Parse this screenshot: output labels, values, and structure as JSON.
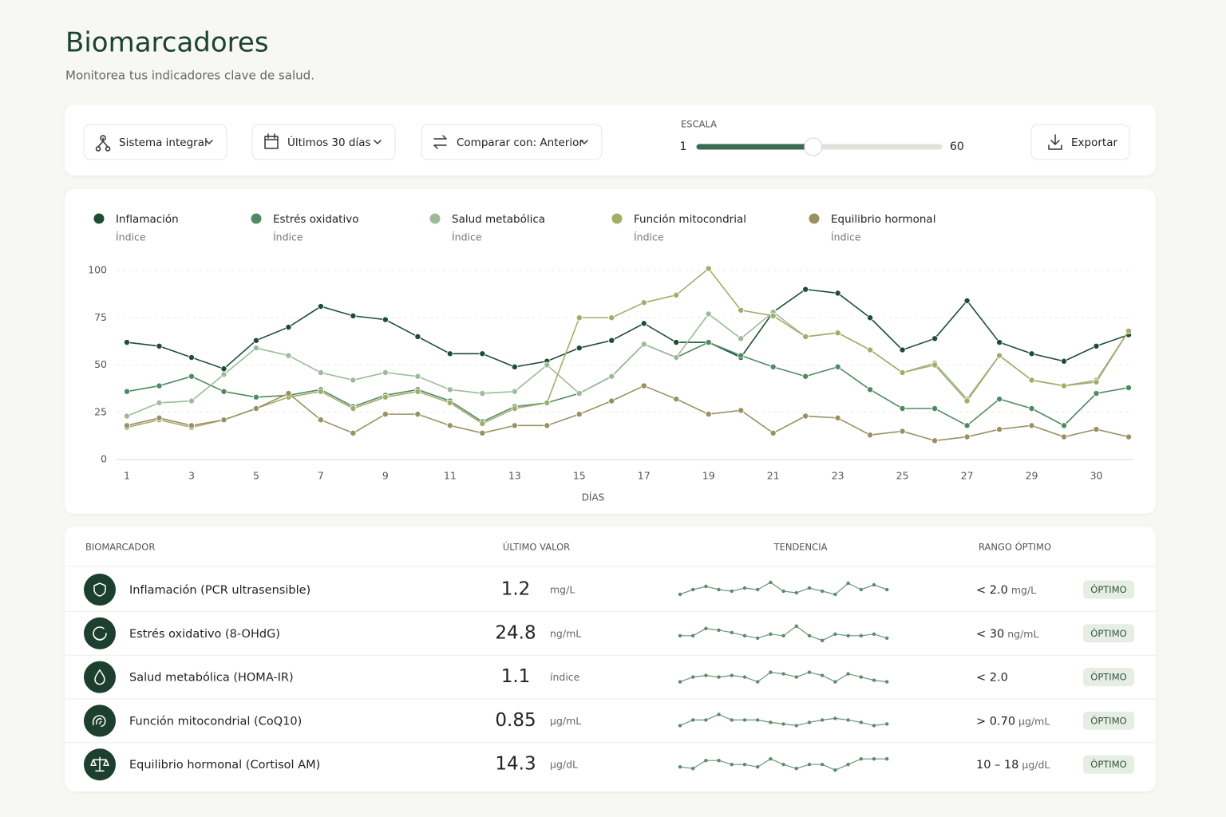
{
  "header": {
    "title": "Biomarcadores",
    "subtitle": "Monitorea tus indicadores clave de salud."
  },
  "toolbar": {
    "filters": [
      "Sistema integral",
      "Últimos 30 días",
      "Comparar con: Anterior"
    ],
    "scale": {
      "label": "ESCALA",
      "min": 1,
      "max": 60,
      "value": 29
    },
    "export": "Exportar"
  },
  "chart_data": {
    "type": "line",
    "categories": [
      "1",
      null,
      "3",
      null,
      "5",
      null,
      "7",
      null,
      "9",
      null,
      "11",
      null,
      "13",
      null,
      "15",
      null,
      "17",
      null,
      "19",
      null,
      "21",
      null,
      "23",
      null,
      "25",
      null,
      "27",
      null,
      "29",
      null,
      "30",
      null
    ],
    "x_label": "DÍAS",
    "ylim": [
      0,
      100
    ],
    "yticks": [
      0,
      25,
      50,
      75,
      100
    ],
    "grid": true,
    "series": [
      {
        "name": "Inflamación",
        "unit": "Índice",
        "color": "#1e4d36",
        "values": [
          62,
          60,
          54,
          48,
          63,
          70,
          81,
          76,
          74,
          65,
          56,
          56,
          49,
          52,
          59,
          63,
          72,
          62,
          62,
          54,
          78,
          90,
          88,
          75,
          58,
          64,
          84,
          62,
          56,
          52,
          60,
          66
        ]
      },
      {
        "name": "Estrés oxidativo",
        "unit": "Índice",
        "color": "#4f8a63",
        "values": [
          36,
          39,
          44,
          36,
          33,
          34,
          37,
          28,
          34,
          37,
          31,
          20,
          28,
          30,
          35,
          44,
          61,
          54,
          62,
          55,
          49,
          44,
          49,
          37,
          27,
          27,
          18,
          32,
          27,
          18,
          35,
          38
        ]
      },
      {
        "name": "Salud metabólica",
        "unit": "Índice",
        "color": "#9dbb9a",
        "values": [
          23,
          30,
          31,
          45,
          59,
          55,
          46,
          42,
          46,
          44,
          37,
          35,
          36,
          50,
          35,
          44,
          61,
          54,
          77,
          64,
          78,
          65,
          67,
          58,
          46,
          51,
          32,
          55,
          42,
          39,
          42,
          68
        ]
      },
      {
        "name": "Función mitocondrial",
        "unit": "Índice",
        "color": "#a3ad68",
        "values": [
          17,
          21,
          17,
          21,
          27,
          33,
          36,
          27,
          33,
          36,
          30,
          19,
          27,
          30,
          75,
          75,
          83,
          87,
          101,
          79,
          76,
          65,
          67,
          58,
          46,
          50,
          31,
          55,
          42,
          39,
          41,
          68
        ]
      },
      {
        "name": "Equilibrio hormonal",
        "unit": "Índice",
        "color": "#9a9162",
        "values": [
          18,
          22,
          18,
          21,
          27,
          35,
          21,
          14,
          24,
          24,
          18,
          14,
          18,
          18,
          24,
          31,
          39,
          32,
          24,
          26,
          14,
          23,
          22,
          13,
          15,
          10,
          12,
          16,
          18,
          12,
          16,
          12
        ]
      }
    ]
  },
  "table": {
    "columns": [
      "BIOMARCADOR",
      "ÚLTIMO VALOR",
      "TENDENCIA",
      "RANGO ÓPTIMO"
    ],
    "rows": [
      {
        "name": "Inflamación (PCR ultrasensible)",
        "value": 1.2,
        "unit": "mg/L",
        "trend": [
          3,
          9,
          13,
          9,
          7,
          11,
          9,
          18,
          7,
          5,
          11,
          7,
          3,
          17,
          9,
          15,
          9
        ],
        "range": "< 2.0",
        "range_unit": "mg/L",
        "status": "ÓPTIMO"
      },
      {
        "name": "Estrés oxidativo (8-OHdG)",
        "value": 24.8,
        "unit": "ng/mL",
        "trend": [
          6,
          6,
          15,
          13,
          10,
          6,
          3,
          8,
          6,
          18,
          6,
          0,
          8,
          6,
          6,
          8,
          3
        ],
        "range": "< 30",
        "range_unit": "ng/mL",
        "status": "ÓPTIMO"
      },
      {
        "name": "Salud metabólica (HOMA-IR)",
        "value": 1.1,
        "unit": "índice",
        "trend": [
          3,
          9,
          11,
          9,
          11,
          9,
          3,
          15,
          13,
          9,
          15,
          11,
          3,
          13,
          9,
          5,
          3
        ],
        "range": "< 2.0",
        "status": "ÓPTIMO"
      },
      {
        "name": "Función mitocondrial (CoQ10)",
        "value": 0.85,
        "unit": "µg/mL",
        "trend": [
          3,
          10,
          10,
          17,
          10,
          10,
          10,
          7,
          5,
          3,
          7,
          10,
          12,
          10,
          7,
          3,
          5
        ],
        "range": "> 0.70",
        "range_unit": "µg/mL",
        "status": "ÓPTIMO"
      },
      {
        "name": "Equilibrio hormonal (Cortisol AM)",
        "value": 14.3,
        "unit": "µg/dL",
        "trend": [
          6,
          4,
          14,
          14,
          9,
          9,
          6,
          16,
          9,
          4,
          9,
          9,
          2,
          9,
          16,
          16,
          16
        ],
        "range": "10 – 18",
        "range_unit": "µg/dL",
        "status": "ÓPTIMO"
      }
    ]
  }
}
